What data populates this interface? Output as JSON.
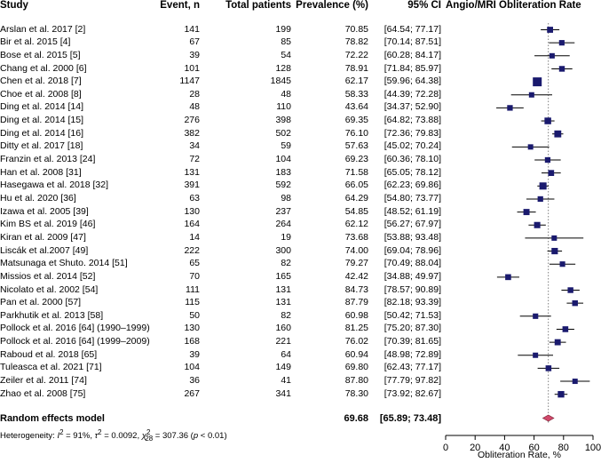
{
  "headers": {
    "study": "Study",
    "events": "Event, n",
    "total": "Total patients",
    "prevalence": "Prevalence (%)",
    "ci": "95% CI",
    "plot": "Angio/MRI Obliteration Rate"
  },
  "pooled": {
    "label": "Random effects model",
    "prevalence": "69.68",
    "ci": "[65.89; 73.48]",
    "estimate": 69.68,
    "lower": 65.89,
    "upper": 73.48
  },
  "heterogeneity": {
    "prefix": "Heterogeneity: ",
    "i2_sym": "I",
    "i2_sup": "2",
    "i2_val": " = 91%, ",
    "tau_sym": "τ",
    "tau_sup": "2",
    "tau_val": " = 0.0092, ",
    "chi_sym": "χ",
    "chi_sup": "2",
    "chi_sub": "28",
    "chi_val": " = 307.36 (",
    "p_sym": "p",
    "p_val": " < 0.01)"
  },
  "axis": {
    "xlabel": "Obliteration Rate, %",
    "ticks": [
      "0",
      "20",
      "40",
      "60",
      "80",
      "100"
    ],
    "tick_values": [
      0,
      20,
      40,
      60,
      80,
      100
    ],
    "xlim": [
      0,
      100
    ]
  },
  "chart_data": {
    "type": "forest",
    "title": "Angio/MRI Obliteration Rate",
    "xlabel": "Obliteration Rate, %",
    "xlim": [
      0,
      100
    ],
    "reference_line": 69.68,
    "colors": {
      "square": "#1a1a6e",
      "line": "#000000",
      "diamond": "#d1496b",
      "diamond_edge": "#7a1f33",
      "ref": "#808080"
    },
    "studies": [
      {
        "study": "Arslan et al. 2017 [2]",
        "events": "141",
        "total": "199",
        "prev": "70.85",
        "ci": "[64.54; 77.17]",
        "est": 70.85,
        "lo": 64.54,
        "hi": 77.17
      },
      {
        "study": "Bir et al. 2015 [4]",
        "events": "67",
        "total": "85",
        "prev": "78.82",
        "ci": "[70.14; 87.51]",
        "est": 78.82,
        "lo": 70.14,
        "hi": 87.51
      },
      {
        "study": "Bose et al. 2015 [5]",
        "events": "39",
        "total": "54",
        "prev": "72.22",
        "ci": "[60.28; 84.17]",
        "est": 72.22,
        "lo": 60.28,
        "hi": 84.17
      },
      {
        "study": "Chang et al. 2000 [6]",
        "events": "101",
        "total": "128",
        "prev": "78.91",
        "ci": "[71.84; 85.97]",
        "est": 78.91,
        "lo": 71.84,
        "hi": 85.97
      },
      {
        "study": "Chen et al. 2018 [7]",
        "events": "1147",
        "total": "1845",
        "prev": "62.17",
        "ci": "[59.96; 64.38]",
        "est": 62.17,
        "lo": 59.96,
        "hi": 64.38
      },
      {
        "study": "Choe et al. 2008 [8]",
        "events": "28",
        "total": "48",
        "prev": "58.33",
        "ci": "[44.39; 72.28]",
        "est": 58.33,
        "lo": 44.39,
        "hi": 72.28
      },
      {
        "study": "Ding et al. 2014 [14]",
        "events": "48",
        "total": "110",
        "prev": "43.64",
        "ci": "[34.37; 52.90]",
        "est": 43.64,
        "lo": 34.37,
        "hi": 52.9
      },
      {
        "study": "Ding et al. 2014 [15]",
        "events": "276",
        "total": "398",
        "prev": "69.35",
        "ci": "[64.82; 73.88]",
        "est": 69.35,
        "lo": 64.82,
        "hi": 73.88
      },
      {
        "study": "Ding et al. 2014 [16]",
        "events": "382",
        "total": "502",
        "prev": "76.10",
        "ci": "[72.36; 79.83]",
        "est": 76.1,
        "lo": 72.36,
        "hi": 79.83
      },
      {
        "study": "Ditty et al. 2017 [18]",
        "events": "34",
        "total": "59",
        "prev": "57.63",
        "ci": "[45.02; 70.24]",
        "est": 57.63,
        "lo": 45.02,
        "hi": 70.24
      },
      {
        "study": "Franzin et al. 2013 [24]",
        "events": "72",
        "total": "104",
        "prev": "69.23",
        "ci": "[60.36; 78.10]",
        "est": 69.23,
        "lo": 60.36,
        "hi": 78.1
      },
      {
        "study": "Han et al. 2008 [31]",
        "events": "131",
        "total": "183",
        "prev": "71.58",
        "ci": "[65.05; 78.12]",
        "est": 71.58,
        "lo": 65.05,
        "hi": 78.12
      },
      {
        "study": "Hasegawa et al. 2018 [32]",
        "events": "391",
        "total": "592",
        "prev": "66.05",
        "ci": "[62.23; 69.86]",
        "est": 66.05,
        "lo": 62.23,
        "hi": 69.86
      },
      {
        "study": "Hu et al. 2020 [36]",
        "events": "63",
        "total": "98",
        "prev": "64.29",
        "ci": "[54.80; 73.77]",
        "est": 64.29,
        "lo": 54.8,
        "hi": 73.77
      },
      {
        "study": "Izawa et al. 2005 [39]",
        "events": "130",
        "total": "237",
        "prev": "54.85",
        "ci": "[48.52; 61.19]",
        "est": 54.85,
        "lo": 48.52,
        "hi": 61.19
      },
      {
        "study": "Kim BS et al. 2019 [46]",
        "events": "164",
        "total": "264",
        "prev": "62.12",
        "ci": "[56.27; 67.97]",
        "est": 62.12,
        "lo": 56.27,
        "hi": 67.97
      },
      {
        "study": "Kiran et al. 2009 [47]",
        "events": "14",
        "total": "19",
        "prev": "73.68",
        "ci": "[53.88; 93.48]",
        "est": 73.68,
        "lo": 53.88,
        "hi": 93.48
      },
      {
        "study": "Liscák et al.2007 [49]",
        "events": "222",
        "total": "300",
        "prev": "74.00",
        "ci": "[69.04; 78.96]",
        "est": 74.0,
        "lo": 69.04,
        "hi": 78.96
      },
      {
        "study": "Matsunaga et Shuto. 2014 [51]",
        "events": "65",
        "total": "82",
        "prev": "79.27",
        "ci": "[70.49; 88.04]",
        "est": 79.27,
        "lo": 70.49,
        "hi": 88.04
      },
      {
        "study": "Missios et al. 2014 [52]",
        "events": "70",
        "total": "165",
        "prev": "42.42",
        "ci": "[34.88; 49.97]",
        "est": 42.42,
        "lo": 34.88,
        "hi": 49.97
      },
      {
        "study": "Nicolato et al. 2002 [54]",
        "events": "111",
        "total": "131",
        "prev": "84.73",
        "ci": "[78.57; 90.89]",
        "est": 84.73,
        "lo": 78.57,
        "hi": 90.89
      },
      {
        "study": "Pan et al. 2000 [57]",
        "events": "115",
        "total": "131",
        "prev": "87.79",
        "ci": "[82.18; 93.39]",
        "est": 87.79,
        "lo": 82.18,
        "hi": 93.39
      },
      {
        "study": "Parkhutik et al. 2013 [58]",
        "events": "50",
        "total": "82",
        "prev": "60.98",
        "ci": "[50.42; 71.53]",
        "est": 60.98,
        "lo": 50.42,
        "hi": 71.53
      },
      {
        "study": "Pollock et al. 2016 [64] (1990–1999)",
        "events": "130",
        "total": "160",
        "prev": "81.25",
        "ci": "[75.20; 87.30]",
        "est": 81.25,
        "lo": 75.2,
        "hi": 87.3
      },
      {
        "study": "Pollock et al. 2016 [64] (1999–2009)",
        "events": "168",
        "total": "221",
        "prev": "76.02",
        "ci": "[70.39; 81.65]",
        "est": 76.02,
        "lo": 70.39,
        "hi": 81.65
      },
      {
        "study": "Raboud et al. 2018 [65]",
        "events": "39",
        "total": "64",
        "prev": "60.94",
        "ci": "[48.98; 72.89]",
        "est": 60.94,
        "lo": 48.98,
        "hi": 72.89
      },
      {
        "study": "Tuleasca et al. 2021 [71]",
        "events": "104",
        "total": "149",
        "prev": "69.80",
        "ci": "[62.43; 77.17]",
        "est": 69.8,
        "lo": 62.43,
        "hi": 77.17
      },
      {
        "study": "Zeiler et al. 2011 [74]",
        "events": "36",
        "total": "41",
        "prev": "87.80",
        "ci": "[77.79; 97.82]",
        "est": 87.8,
        "lo": 77.79,
        "hi": 97.82
      },
      {
        "study": "Zhao et al. 2008 [75]",
        "events": "267",
        "total": "341",
        "prev": "78.30",
        "ci": "[73.92; 82.67]",
        "est": 78.3,
        "lo": 73.92,
        "hi": 82.67
      }
    ]
  }
}
